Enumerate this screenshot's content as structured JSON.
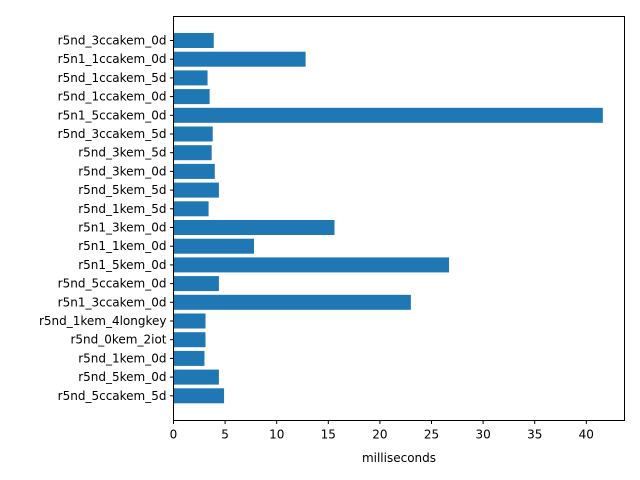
{
  "chart_data": {
    "type": "bar",
    "orientation": "horizontal",
    "title": "",
    "xlabel": "milliseconds",
    "ylabel": "",
    "xlim": [
      0,
      43.7
    ],
    "xticks": [
      0,
      5,
      10,
      15,
      20,
      25,
      30,
      35,
      40
    ],
    "grid": false,
    "legend": "none",
    "bar_color": "#1f77b4",
    "categories": [
      "r5nd_3ccakem_0d",
      "r5n1_1ccakem_0d",
      "r5nd_1ccakem_5d",
      "r5nd_1ccakem_0d",
      "r5n1_5ccakem_0d",
      "r5nd_3ccakem_5d",
      "r5nd_3kem_5d",
      "r5nd_3kem_0d",
      "r5nd_5kem_5d",
      "r5nd_1kem_5d",
      "r5n1_3kem_0d",
      "r5n1_1kem_0d",
      "r5n1_5kem_0d",
      "r5nd_5ccakem_0d",
      "r5n1_3ccakem_0d",
      "r5nd_1kem_4longkey",
      "r5nd_0kem_2iot",
      "r5nd_1kem_0d",
      "r5nd_5kem_0d",
      "r5nd_5ccakem_5d"
    ],
    "values": [
      3.9,
      12.8,
      3.3,
      3.5,
      41.6,
      3.8,
      3.7,
      4.0,
      4.4,
      3.4,
      15.6,
      7.8,
      26.7,
      4.4,
      23.0,
      3.1,
      3.1,
      3.0,
      4.4,
      4.9
    ]
  }
}
